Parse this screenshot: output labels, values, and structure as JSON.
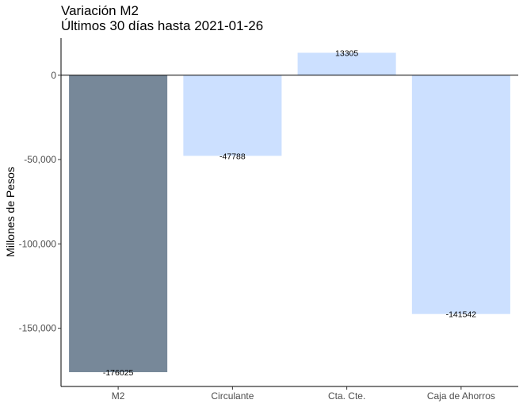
{
  "title": "Variación M2",
  "subtitle": "Últimos 30 días hasta 2021-01-26",
  "chart_data": {
    "type": "bar",
    "title": "Variación M2",
    "subtitle": "Últimos 30 días hasta 2021-01-26",
    "xlabel": "",
    "ylabel": "Millones de Pesos",
    "categories": [
      "M2",
      "Circulante",
      "Cta. Cte.",
      "Caja de Ahorros"
    ],
    "values": [
      -176025,
      -47788,
      13305,
      -141542
    ],
    "data_labels": [
      "-176025",
      "-47788",
      "13305",
      "-141542"
    ],
    "ylim": [
      -184500,
      22000
    ],
    "yticks": [
      0,
      -50000,
      -100000,
      -150000
    ],
    "ytick_labels": [
      "0",
      "-50,000",
      "-100,000",
      "-150,000"
    ],
    "colors": [
      "#778899",
      "#cce0ff",
      "#cce0ff",
      "#cce0ff"
    ],
    "grid": false,
    "legend": "none"
  }
}
